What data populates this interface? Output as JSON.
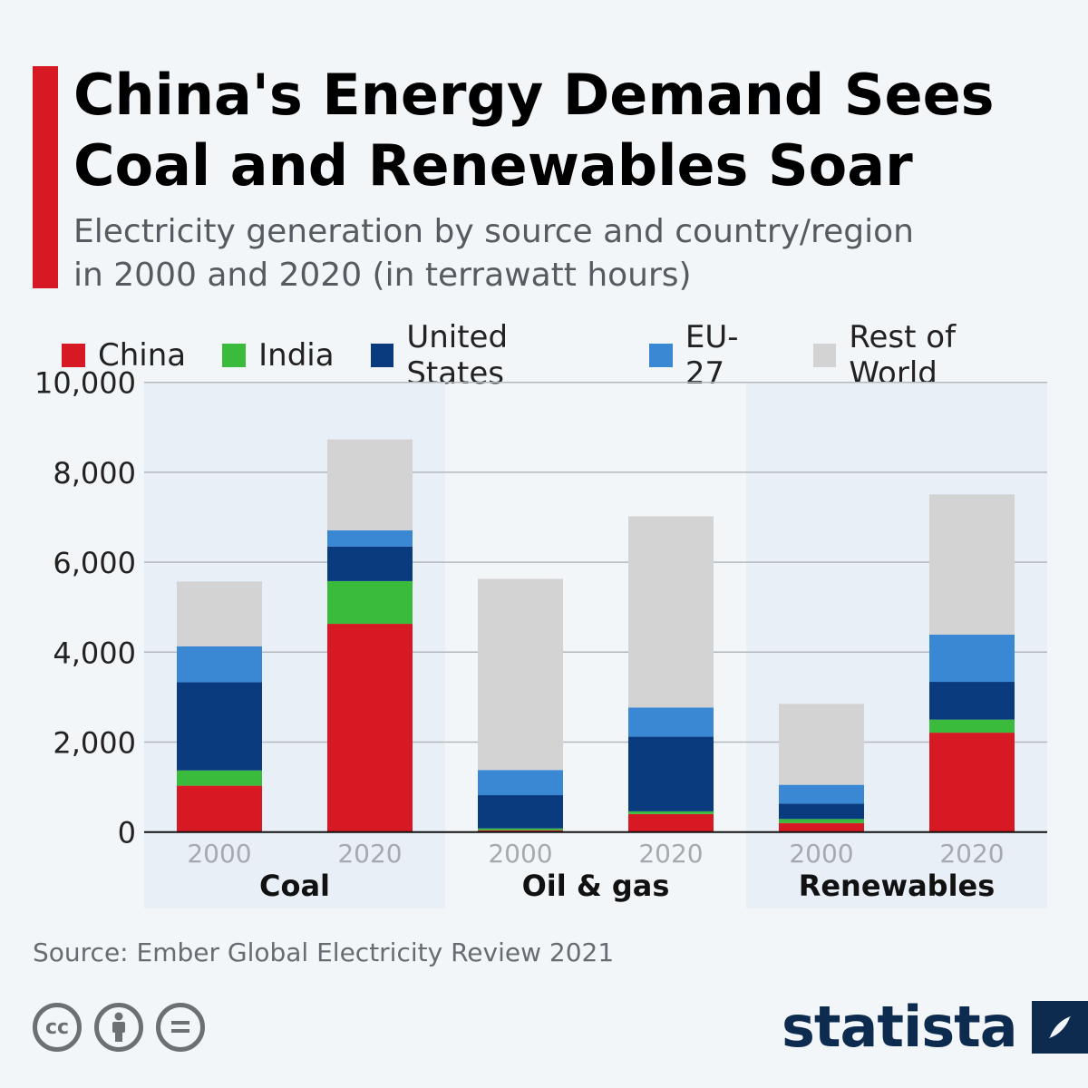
{
  "title_line1": "China's Energy Demand Sees",
  "title_line2": "Coal and Renewables Soar",
  "subtitle_line1": "Electricity generation by source and country/region",
  "subtitle_line2": "in 2000 and 2020 (in terrawatt hours)",
  "source": "Source: Ember Global Electricity Review 2021",
  "logo_text": "statista",
  "cc_icons": [
    "cc-icon",
    "attribution-icon",
    "no-derivatives-icon"
  ],
  "chart_data": {
    "type": "bar",
    "stacked": true,
    "groups": [
      "Coal",
      "Oil & gas",
      "Renewables"
    ],
    "categories": [
      "2000",
      "2020",
      "2000",
      "2020",
      "2000",
      "2020"
    ],
    "ylim": [
      0,
      10000
    ],
    "yticks": [
      "0",
      "2,000",
      "4,000",
      "6,000",
      "8,000",
      "10,000"
    ],
    "ytick_values": [
      0,
      2000,
      4000,
      6000,
      8000,
      10000
    ],
    "grid": true,
    "legend_position": "top",
    "series": [
      {
        "name": "China",
        "color": "#d71923",
        "values": [
          1030,
          4630,
          40,
          400,
          200,
          2210
        ]
      },
      {
        "name": "India",
        "color": "#3abb3c",
        "values": [
          340,
          950,
          40,
          60,
          90,
          290
        ]
      },
      {
        "name": "United States",
        "color": "#0b3b7f",
        "values": [
          1960,
          770,
          740,
          1660,
          340,
          840
        ]
      },
      {
        "name": "EU-27",
        "color": "#3a87d4",
        "values": [
          800,
          360,
          560,
          650,
          420,
          1050
        ]
      },
      {
        "name": "Rest of World",
        "color": "#d3d3d3",
        "values": [
          1440,
          2020,
          4250,
          4250,
          1800,
          3120
        ]
      }
    ]
  }
}
